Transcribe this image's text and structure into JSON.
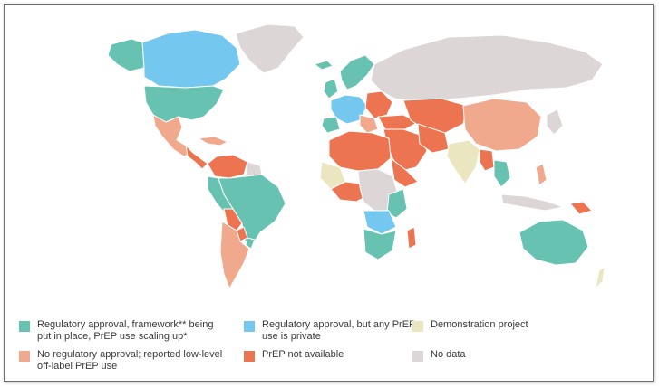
{
  "map": {
    "colors": {
      "ocean": "#ffffff",
      "teal": "#67c2b2",
      "blue": "#74c7ee",
      "beige": "#eae6c0",
      "salmon": "#f0a98d",
      "orange": "#ed7450",
      "grey": "#ddd6d6",
      "border": "#ffffff"
    }
  },
  "legend": {
    "items": [
      {
        "label": "Regulatory approval, framework** being put in place, PrEP use scaling up*",
        "color": "#67c2b2"
      },
      {
        "label": "Regulatory approval, but any PrEP use is private",
        "color": "#74c7ee"
      },
      {
        "label": "Demonstration project",
        "color": "#eae6c0"
      },
      {
        "label": "No regulatory approval; reported low-level off-label PrEP use",
        "color": "#f0a98d"
      },
      {
        "label": "PrEP not available",
        "color": "#ed7450"
      },
      {
        "label": "No data",
        "color": "#ddd6d6"
      }
    ]
  }
}
